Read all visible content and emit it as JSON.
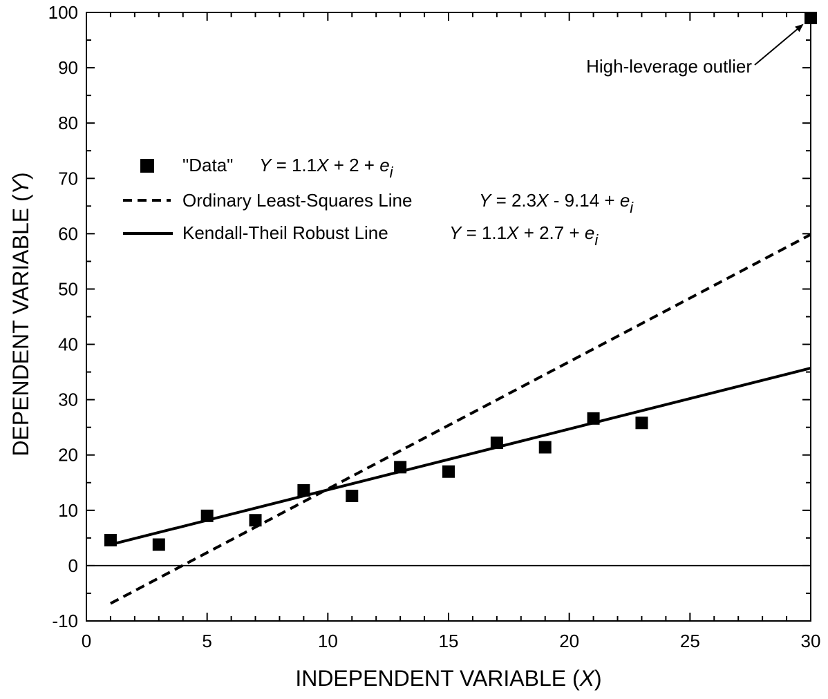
{
  "chart_data": {
    "type": "scatter",
    "xlabel_main": "INDEPENDENT VARIABLE (",
    "xlabel_var": "X",
    "xlabel_end": ")",
    "ylabel_main": "DEPENDENT VARIABLE (",
    "ylabel_var": "Y",
    "ylabel_end": ")",
    "xlim": [
      0,
      30
    ],
    "ylim": [
      -10,
      100
    ],
    "x_ticks": [
      0,
      5,
      10,
      15,
      20,
      25,
      30
    ],
    "y_ticks": [
      -10,
      0,
      10,
      20,
      30,
      40,
      50,
      60,
      70,
      80,
      90,
      100
    ],
    "x_minor_step": 1,
    "y_minor_step": 5,
    "zero_line": true,
    "legend_position": "upper-left",
    "series": [
      {
        "name": "\"Data\"",
        "kind": "points",
        "x": [
          1,
          3,
          5,
          7,
          9,
          11,
          13,
          15,
          17,
          19,
          21,
          23,
          30
        ],
        "y": [
          4.6,
          3.8,
          9.0,
          8.2,
          13.6,
          12.6,
          17.8,
          17.0,
          22.2,
          21.4,
          26.6,
          25.8,
          99.0
        ],
        "equation": {
          "lhs": "Y",
          "mid": " = 1.1",
          "var": "X",
          "rest": " + 2 + ",
          "err": "e",
          "sub": "i"
        }
      },
      {
        "name": "Ordinary Least-Squares Line",
        "kind": "line-dashed",
        "slope": 2.3,
        "intercept": -9.14,
        "x_range": [
          1,
          30
        ],
        "equation": {
          "lhs": "Y",
          "mid": " = 2.3",
          "var": "X",
          "rest": " - 9.14 + ",
          "err": "e",
          "sub": "i"
        }
      },
      {
        "name": "Kendall-Theil Robust Line",
        "kind": "line-solid",
        "slope": 1.1,
        "intercept": 2.7,
        "x_range": [
          1,
          30
        ],
        "equation": {
          "lhs": "Y",
          "mid": " = 1.1",
          "var": "X",
          "rest": " + 2.7 + ",
          "err": "e",
          "sub": "i"
        }
      }
    ],
    "annotations": [
      {
        "text": "High-leverage outlier",
        "target_x": 30,
        "target_y": 99
      }
    ]
  }
}
